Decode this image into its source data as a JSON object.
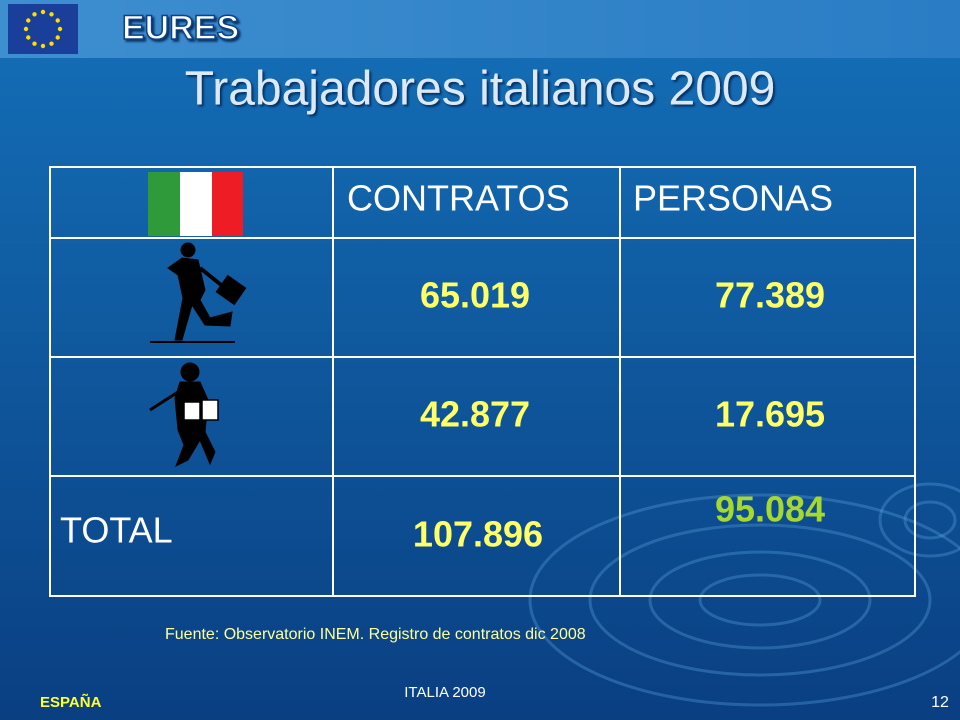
{
  "header": {
    "logo": "EURES"
  },
  "title": "Trabajadores italianos 2009",
  "table": {
    "header": [
      "CONTRATOS",
      "PERSONAS"
    ],
    "rows": [
      [
        "65.019",
        "77.389"
      ],
      [
        "42.877",
        "17.695"
      ],
      [
        "TOTAL",
        "107.896",
        "95.084"
      ]
    ]
  },
  "source": "Fuente: Observatorio INEM. Registro de contratos dic 2008",
  "footer": {
    "left": "ESPAÑA",
    "center": "ITALIA 2009",
    "page": "12"
  }
}
